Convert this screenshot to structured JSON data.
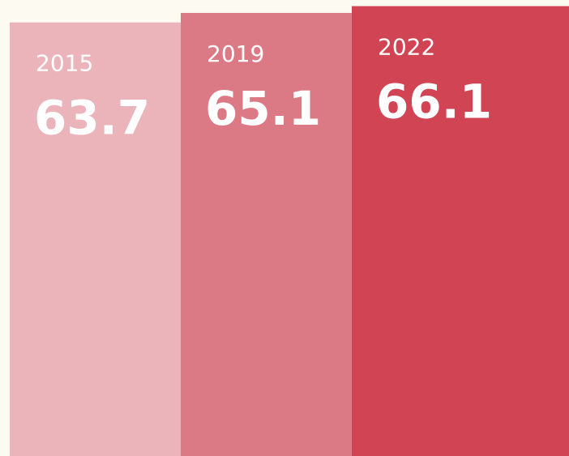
{
  "chart_data": {
    "type": "bar",
    "categories": [
      "2015",
      "2019",
      "2022"
    ],
    "values": [
      63.7,
      65.1,
      66.1
    ],
    "colors": [
      "#ebb4ba",
      "#db7a84",
      "#d04454"
    ],
    "ylim": [
      0,
      67
    ]
  }
}
